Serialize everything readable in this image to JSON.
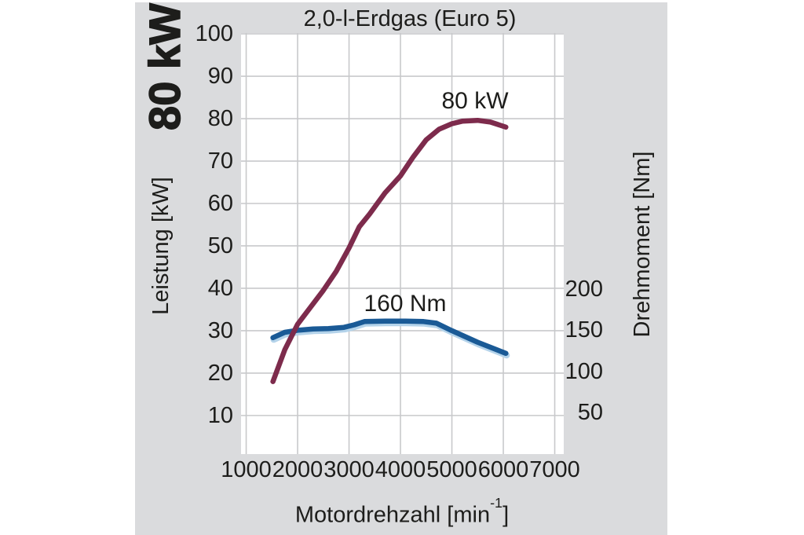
{
  "page": {
    "background": "#ffffff",
    "panel_bg": "#dadbdd",
    "grid_color": "#c8c9cb",
    "text_color": "#1d1d1b"
  },
  "badge": {
    "text": "80 kW"
  },
  "chart_data": {
    "type": "line",
    "title": "2,0-l-Erdgas (Euro 5)",
    "grid": true,
    "legend_position": "none",
    "x_axis": {
      "label": "Motordrehzahl [min⁻¹]",
      "label_render": {
        "main": "Motordrehzahl [min",
        "sup": "-1",
        "end": "]"
      },
      "ticks": [
        1000,
        2000,
        3000,
        4000,
        5000,
        6000,
        7000
      ],
      "range": [
        900,
        7175
      ]
    },
    "y_left": {
      "label": "Leistung [kW]",
      "ticks": [
        100,
        90,
        80,
        70,
        60,
        50,
        40,
        30,
        20,
        10
      ],
      "range": [
        0.9,
        100.2
      ]
    },
    "y_right": {
      "label": "Drehmoment [Nm]",
      "ticks": [
        200,
        150,
        100,
        50
      ],
      "range": [
        0,
        510
      ]
    },
    "series": [
      {
        "name": "Leistung",
        "annotation": "80 kW",
        "axis": "left",
        "unit": "kW",
        "color": "#7d2b4c",
        "points": [
          [
            1520,
            18
          ],
          [
            1750,
            25.5
          ],
          [
            2000,
            31.5
          ],
          [
            2250,
            35.5
          ],
          [
            2500,
            39.5
          ],
          [
            2750,
            44
          ],
          [
            3000,
            49.5
          ],
          [
            3200,
            54.5
          ],
          [
            3400,
            57.5
          ],
          [
            3700,
            62.5
          ],
          [
            4000,
            66.5
          ],
          [
            4250,
            71
          ],
          [
            4500,
            75
          ],
          [
            4750,
            77.5
          ],
          [
            5000,
            78.8
          ],
          [
            5200,
            79.4
          ],
          [
            5500,
            79.6
          ],
          [
            5750,
            79.2
          ],
          [
            6050,
            78
          ]
        ]
      },
      {
        "name": "Drehmoment",
        "annotation": "160 Nm",
        "axis": "right",
        "unit": "Nm",
        "color": "#1a5a96",
        "halo_color": "#b4d3ea",
        "points": [
          [
            1520,
            141
          ],
          [
            1750,
            147.5
          ],
          [
            2000,
            150
          ],
          [
            2300,
            151.5
          ],
          [
            2600,
            152
          ],
          [
            2900,
            153.5
          ],
          [
            3100,
            156.5
          ],
          [
            3300,
            160.5
          ],
          [
            3700,
            161
          ],
          [
            4100,
            161
          ],
          [
            4450,
            160.5
          ],
          [
            4700,
            158.5
          ],
          [
            5000,
            149.5
          ],
          [
            5500,
            135.5
          ],
          [
            6050,
            122
          ]
        ]
      }
    ]
  }
}
